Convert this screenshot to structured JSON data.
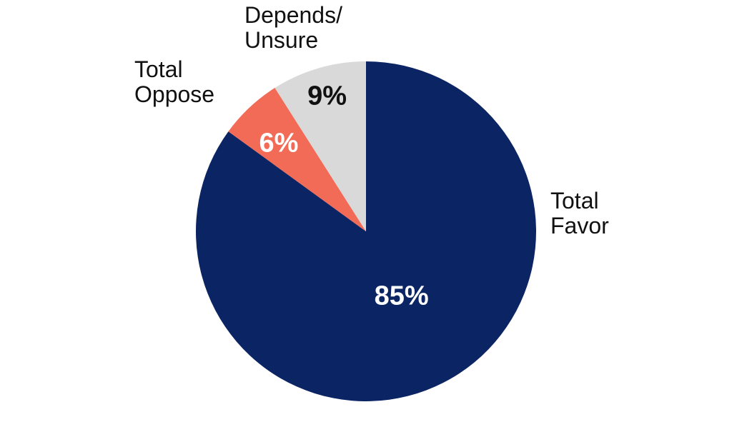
{
  "chart_data": {
    "type": "pie",
    "title": "",
    "slices": [
      {
        "label_lines": [
          "Total",
          "Favor"
        ],
        "value": 85,
        "value_label": "85%",
        "color": "#0b2463",
        "value_label_color": "#ffffff"
      },
      {
        "label_lines": [
          "Total",
          "Oppose"
        ],
        "value": 6,
        "value_label": "6%",
        "color": "#f26b57",
        "value_label_color": "#ffffff"
      },
      {
        "label_lines": [
          "Depends/",
          "Unsure"
        ],
        "value": 9,
        "value_label": "9%",
        "color": "#d9d9d9",
        "value_label_color": "#111111"
      }
    ],
    "start_angle": "12 o'clock",
    "direction": "clockwise",
    "legend": "none"
  }
}
